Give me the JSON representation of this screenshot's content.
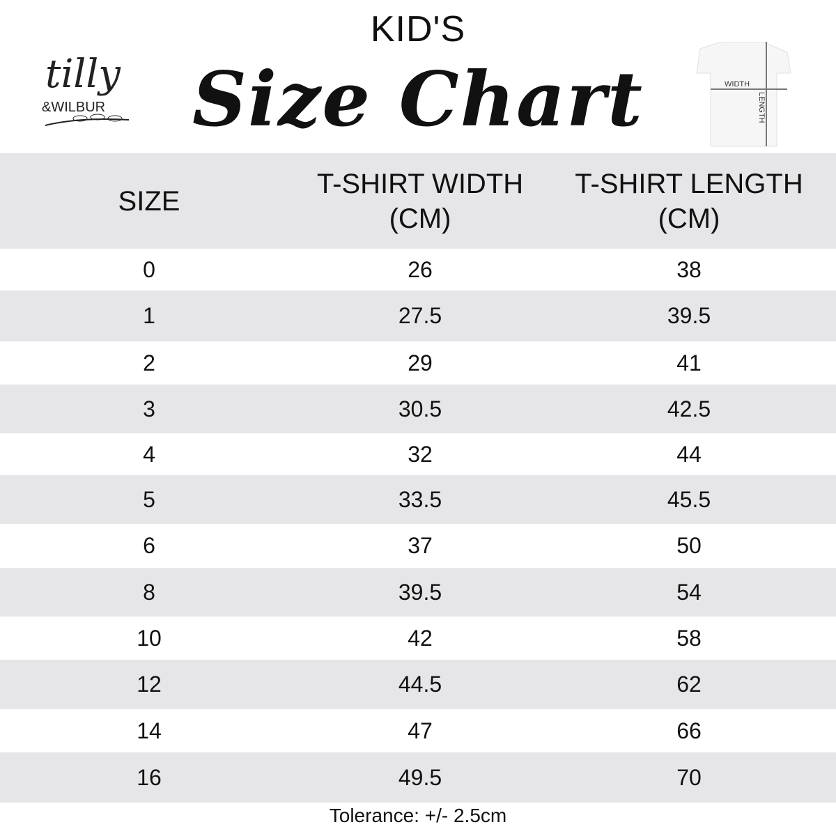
{
  "header": {
    "kicker": "KID'S",
    "title": "Size Chart",
    "logo_text": "tilly & WILBUR",
    "diagram": {
      "width_label": "WIDTH",
      "length_label": "LENGTH"
    }
  },
  "table": {
    "columns": [
      "SIZE",
      "T-SHIRT WIDTH (CM)",
      "T-SHIRT LENGTH (CM)"
    ],
    "rows": [
      [
        "0",
        "26",
        "38"
      ],
      [
        "1",
        "27.5",
        "39.5"
      ],
      [
        "2",
        "29",
        "41"
      ],
      [
        "3",
        "30.5",
        "42.5"
      ],
      [
        "4",
        "32",
        "44"
      ],
      [
        "5",
        "33.5",
        "45.5"
      ],
      [
        "6",
        "37",
        "50"
      ],
      [
        "8",
        "39.5",
        "54"
      ],
      [
        "10",
        "42",
        "58"
      ],
      [
        "12",
        "44.5",
        "62"
      ],
      [
        "14",
        "47",
        "66"
      ],
      [
        "16",
        "49.5",
        "70"
      ]
    ]
  },
  "footer": {
    "tolerance": "Tolerance: +/- 2.5cm"
  },
  "colors": {
    "stripe": "#e6e6e8",
    "text": "#111111"
  }
}
